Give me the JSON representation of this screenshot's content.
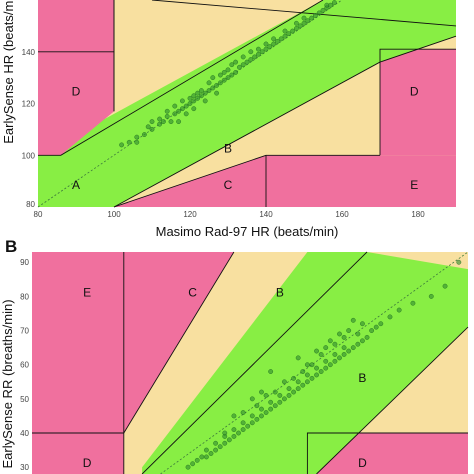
{
  "colors": {
    "zone_A": "#88ee44",
    "zone_B": "#f8e0a0",
    "zone_CDE": "#f0709e",
    "boundary": "#111111",
    "point_fill": "#2e8b2e",
    "point_stroke": "#1a6a1a",
    "identity_line": "#3c7a3c"
  },
  "chart_data": [
    {
      "type": "scatter",
      "panel": "A",
      "panel_label": "",
      "xlabel": "Masimo Rad-97 HR (beats/min)",
      "ylabel": "EarlySense HR (beats/min)",
      "xlim": [
        80,
        190
      ],
      "ylim": [
        80,
        160
      ],
      "x_ticks": [
        80,
        100,
        120,
        140,
        160,
        180
      ],
      "y_ticks": [
        80,
        100,
        120,
        140
      ],
      "grid": true,
      "zone_labels": [
        {
          "text": "A",
          "x": 90,
          "y": 87
        },
        {
          "text": "B",
          "x": 130,
          "y": 101
        },
        {
          "text": "C",
          "x": 130,
          "y": 87
        },
        {
          "text": "D",
          "x": 90,
          "y": 123
        },
        {
          "text": "D",
          "x": 179,
          "y": 123
        },
        {
          "text": "E",
          "x": 179,
          "y": 87
        }
      ],
      "series": [
        {
          "values": [
            [
              102,
              104
            ],
            [
              104,
              105
            ],
            [
              106,
              107
            ],
            [
              108,
              108
            ],
            [
              109,
              111
            ],
            [
              110,
              110
            ],
            [
              112,
              112
            ],
            [
              112,
              114
            ],
            [
              113,
              113
            ],
            [
              114,
              115
            ],
            [
              114,
              117
            ],
            [
              115,
              113
            ],
            [
              116,
              116
            ],
            [
              116,
              119
            ],
            [
              117,
              117
            ],
            [
              118,
              118
            ],
            [
              118,
              121
            ],
            [
              119,
              119
            ],
            [
              120,
              120
            ],
            [
              120,
              122
            ],
            [
              121,
              121
            ],
            [
              121,
              123
            ],
            [
              122,
              122
            ],
            [
              122,
              124
            ],
            [
              123,
              123
            ],
            [
              123,
              125
            ],
            [
              124,
              124
            ],
            [
              124,
              121
            ],
            [
              125,
              125
            ],
            [
              125,
              128
            ],
            [
              126,
              126
            ],
            [
              126,
              130
            ],
            [
              127,
              127
            ],
            [
              127,
              124
            ],
            [
              128,
              128
            ],
            [
              128,
              131
            ],
            [
              129,
              129
            ],
            [
              129,
              132
            ],
            [
              130,
              130
            ],
            [
              130,
              133
            ],
            [
              131,
              131
            ],
            [
              131,
              135
            ],
            [
              132,
              132
            ],
            [
              132,
              136
            ],
            [
              133,
              134
            ],
            [
              134,
              135
            ],
            [
              134,
              138
            ],
            [
              135,
              136
            ],
            [
              136,
              137
            ],
            [
              136,
              140
            ],
            [
              137,
              138
            ],
            [
              138,
              139
            ],
            [
              138,
              141
            ],
            [
              139,
              140
            ],
            [
              140,
              141
            ],
            [
              140,
              143
            ],
            [
              141,
              142
            ],
            [
              142,
              143
            ],
            [
              142,
              145
            ],
            [
              143,
              144
            ],
            [
              144,
              145
            ],
            [
              145,
              146
            ],
            [
              145,
              148
            ],
            [
              146,
              147
            ],
            [
              147,
              148
            ],
            [
              148,
              149
            ],
            [
              148,
              151
            ],
            [
              149,
              150
            ],
            [
              150,
              151
            ],
            [
              150,
              153
            ],
            [
              151,
              152
            ],
            [
              152,
              153
            ],
            [
              153,
              154
            ],
            [
              154,
              155
            ],
            [
              155,
              156
            ],
            [
              156,
              157
            ],
            [
              156,
              158
            ],
            [
              157,
              158
            ],
            [
              158,
              159
            ],
            [
              117,
              113
            ],
            [
              119,
              116
            ],
            [
              121,
              118
            ],
            [
              110,
              113
            ],
            [
              106,
              105
            ]
          ]
        }
      ]
    },
    {
      "type": "scatter",
      "panel": "B",
      "panel_label": "B",
      "xlabel": "",
      "ylabel": "EarlySense RR (breaths/min)",
      "xlim": [
        0,
        95
      ],
      "ylim": [
        28,
        93
      ],
      "y_ticks": [
        30,
        40,
        50,
        60,
        70,
        80,
        90
      ],
      "grid": true,
      "zone_labels": [
        {
          "text": "E",
          "x": 12,
          "y": 80
        },
        {
          "text": "C",
          "x": 35,
          "y": 80
        },
        {
          "text": "B",
          "x": 54,
          "y": 80
        },
        {
          "text": "B",
          "x": 72,
          "y": 55
        },
        {
          "text": "D",
          "x": 12,
          "y": 30
        },
        {
          "text": "D",
          "x": 72,
          "y": 30
        }
      ],
      "series": [
        {
          "values": [
            [
              34,
              30
            ],
            [
              35,
              31
            ],
            [
              36,
              32
            ],
            [
              37,
              33
            ],
            [
              38,
              33
            ],
            [
              38,
              35
            ],
            [
              39,
              34
            ],
            [
              40,
              35
            ],
            [
              40,
              37
            ],
            [
              41,
              36
            ],
            [
              42,
              37
            ],
            [
              42,
              39
            ],
            [
              43,
              38
            ],
            [
              44,
              39
            ],
            [
              44,
              41
            ],
            [
              45,
              40
            ],
            [
              46,
              41
            ],
            [
              46,
              43
            ],
            [
              47,
              42
            ],
            [
              48,
              43
            ],
            [
              48,
              45
            ],
            [
              49,
              44
            ],
            [
              50,
              45
            ],
            [
              50,
              47
            ],
            [
              51,
              46
            ],
            [
              52,
              47
            ],
            [
              52,
              49
            ],
            [
              53,
              48
            ],
            [
              54,
              49
            ],
            [
              54,
              51
            ],
            [
              55,
              50
            ],
            [
              56,
              51
            ],
            [
              56,
              53
            ],
            [
              57,
              52
            ],
            [
              58,
              53
            ],
            [
              58,
              55
            ],
            [
              59,
              54
            ],
            [
              60,
              55
            ],
            [
              60,
              57
            ],
            [
              61,
              56
            ],
            [
              62,
              57
            ],
            [
              62,
              59
            ],
            [
              63,
              58
            ],
            [
              64,
              59
            ],
            [
              64,
              61
            ],
            [
              65,
              60
            ],
            [
              66,
              61
            ],
            [
              66,
              63
            ],
            [
              67,
              62
            ],
            [
              68,
              63
            ],
            [
              68,
              65
            ],
            [
              69,
              64
            ],
            [
              70,
              65
            ],
            [
              71,
              66
            ],
            [
              72,
              67
            ],
            [
              73,
              68
            ],
            [
              74,
              70
            ],
            [
              75,
              71
            ],
            [
              76,
              72
            ],
            [
              78,
              74
            ],
            [
              80,
              76
            ],
            [
              83,
              78
            ],
            [
              87,
              80
            ],
            [
              90,
              83
            ],
            [
              93,
              90
            ],
            [
              52,
              58
            ],
            [
              55,
              55
            ],
            [
              58,
              62
            ],
            [
              62,
              64
            ],
            [
              65,
              67
            ],
            [
              48,
              50
            ],
            [
              50,
              52
            ],
            [
              44,
              45
            ],
            [
              60,
              60
            ],
            [
              63,
              63
            ],
            [
              67,
              69
            ],
            [
              70,
              73
            ],
            [
              53,
              52
            ],
            [
              57,
              56
            ],
            [
              61,
              60
            ],
            [
              66,
              66
            ],
            [
              69,
              70
            ],
            [
              72,
              72
            ],
            [
              42,
              40
            ],
            [
              46,
              46
            ],
            [
              49,
              48
            ],
            [
              51,
              51
            ],
            [
              59,
              58
            ],
            [
              64,
              65
            ],
            [
              68,
              68
            ],
            [
              71,
              69
            ]
          ]
        }
      ]
    }
  ]
}
